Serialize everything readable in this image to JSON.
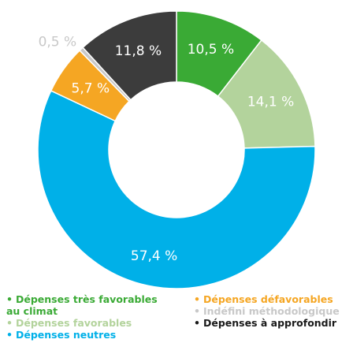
{
  "chart_data": {
    "type": "donut",
    "categories": [
      "Dépenses très favorables au climat",
      "Dépenses favorables",
      "Dépenses neutres",
      "Dépenses défavorables",
      "Indéfini méthodologique",
      "Dépenses à approfondir"
    ],
    "values": [
      10.5,
      14.1,
      57.4,
      5.7,
      0.5,
      11.8
    ],
    "value_labels": [
      "10,5 %",
      "14,1 %",
      "57,4 %",
      "5,7 %",
      "0,5 %",
      "11,8 %"
    ],
    "colors": [
      "#3aaa35",
      "#b3d39c",
      "#00b0e8",
      "#f5a623",
      "#c8c8c8",
      "#3c3c3c"
    ]
  }
}
